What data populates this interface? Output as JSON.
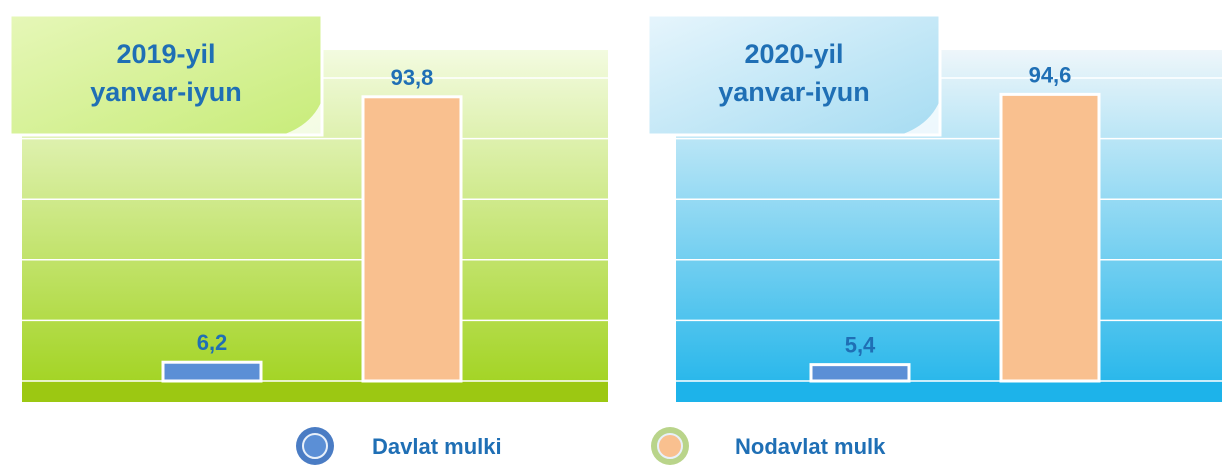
{
  "chart_data": {
    "type": "bar",
    "categories": [
      "2019-yil\nyanvar-iyun",
      "2020-yil\nyanvar-iyun"
    ],
    "series": [
      {
        "name": "Davlat mulki",
        "color": "#5b8fd6",
        "values": [
          6.2,
          5.4
        ],
        "value_labels": [
          "6,2",
          "5,4"
        ]
      },
      {
        "name": "Nodavlat mulk",
        "color": "#f9c08f",
        "values": [
          93.8,
          94.6
        ],
        "value_labels": [
          "93,8",
          "94,6"
        ]
      }
    ],
    "ylim": [
      0,
      100
    ],
    "yticks": [
      0,
      20,
      40,
      60,
      80,
      100
    ],
    "grid": true
  }
}
